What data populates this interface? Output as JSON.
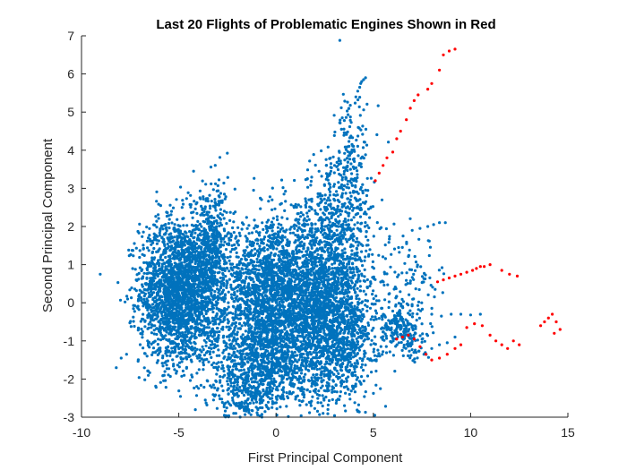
{
  "chart_data": {
    "type": "scatter",
    "title": "Last 20 Flights of Problematic Engines Shown in Red",
    "xlabel": "First Principal Component",
    "ylabel": "Second Principal Component",
    "xlim": [
      -10,
      15
    ],
    "ylim": [
      -3,
      7
    ],
    "xticks": [
      -10,
      -5,
      0,
      5,
      10,
      15
    ],
    "yticks": [
      -3,
      -2,
      -1,
      0,
      1,
      2,
      3,
      4,
      5,
      6,
      7
    ],
    "grid": false,
    "colors": {
      "normal": "#0072BD",
      "problematic": "#FF0000"
    },
    "series": [
      {
        "color_key": "normal",
        "clusters": [
          {
            "cx": -5.0,
            "cy": 0.3,
            "sx": 1.0,
            "sy": 0.95,
            "n": 2200
          },
          {
            "cx": -3.3,
            "cy": 1.3,
            "sx": 0.6,
            "sy": 0.9,
            "n": 500
          },
          {
            "cx": 0.0,
            "cy": 0.4,
            "sx": 1.3,
            "sy": 0.85,
            "n": 1900
          },
          {
            "cx": -0.5,
            "cy": -1.3,
            "sx": 1.5,
            "sy": 0.75,
            "n": 1300
          },
          {
            "cx": 3.0,
            "cy": -0.4,
            "sx": 1.0,
            "sy": 1.1,
            "n": 1700
          },
          {
            "cx": 3.0,
            "cy": 2.0,
            "sx": 1.0,
            "sy": 0.9,
            "n": 500
          },
          {
            "cx": 3.8,
            "cy": 3.8,
            "sx": 0.45,
            "sy": 0.8,
            "n": 150
          },
          {
            "cx": 6.5,
            "cy": -0.8,
            "sx": 0.7,
            "sy": 0.35,
            "n": 220
          },
          {
            "cx": 6.8,
            "cy": 0.3,
            "sx": 0.9,
            "sy": 0.7,
            "n": 120
          },
          {
            "cx": -1.5,
            "cy": -2.3,
            "sx": 0.8,
            "sy": 0.35,
            "n": 200
          }
        ],
        "trails": [
          {
            "x": [
              4.1,
              4.2,
              4.3,
              4.35,
              4.4,
              4.5,
              4.6
            ],
            "y": [
              5.4,
              5.55,
              5.65,
              5.75,
              5.8,
              5.85,
              5.9
            ]
          },
          {
            "x": [
              6.8,
              7.2,
              7.6,
              8.0,
              8.4,
              8.8,
              9.2
            ],
            "y": [
              -1.1,
              -1.3,
              -1.35,
              -1.2,
              -1.1,
              -1.05,
              -0.9
            ]
          },
          {
            "x": [
              7.0,
              7.4,
              7.8,
              8.1,
              8.4,
              8.7
            ],
            "y": [
              1.9,
              1.95,
              2.0,
              2.05,
              2.1,
              2.1
            ]
          },
          {
            "x": [
              8.0,
              8.5,
              9.0,
              9.5,
              10.0,
              10.5
            ],
            "y": [
              -0.3,
              -0.35,
              -0.3,
              -0.3,
              -0.32,
              -0.3
            ]
          }
        ]
      },
      {
        "color_key": "problematic",
        "points": [
          [
            5.1,
            3.2
          ],
          [
            5.3,
            3.4
          ],
          [
            5.5,
            3.6
          ],
          [
            5.7,
            3.8
          ],
          [
            6.0,
            3.95
          ],
          [
            6.2,
            4.3
          ],
          [
            6.4,
            4.5
          ],
          [
            6.7,
            4.8
          ],
          [
            6.9,
            5.1
          ],
          [
            7.1,
            5.3
          ],
          [
            7.3,
            5.45
          ],
          [
            7.8,
            5.6
          ],
          [
            8.0,
            5.75
          ],
          [
            8.4,
            6.1
          ],
          [
            8.6,
            6.5
          ],
          [
            8.9,
            6.6
          ],
          [
            9.2,
            6.65
          ],
          [
            8.3,
            0.55
          ],
          [
            8.6,
            0.6
          ],
          [
            8.9,
            0.65
          ],
          [
            9.2,
            0.7
          ],
          [
            9.5,
            0.75
          ],
          [
            9.8,
            0.8
          ],
          [
            10.1,
            0.85
          ],
          [
            10.3,
            0.9
          ],
          [
            10.5,
            0.95
          ],
          [
            10.7,
            0.95
          ],
          [
            11.0,
            1.0
          ],
          [
            11.6,
            0.85
          ],
          [
            12.0,
            0.75
          ],
          [
            12.4,
            0.7
          ],
          [
            6.2,
            -0.95
          ],
          [
            6.5,
            -0.9
          ],
          [
            6.8,
            -0.85
          ],
          [
            7.1,
            -0.95
          ],
          [
            7.4,
            -1.15
          ],
          [
            7.7,
            -1.35
          ],
          [
            8.0,
            -1.5
          ],
          [
            8.4,
            -1.45
          ],
          [
            8.8,
            -1.35
          ],
          [
            9.2,
            -1.2
          ],
          [
            9.5,
            -1.1
          ],
          [
            9.8,
            -0.65
          ],
          [
            10.2,
            -0.55
          ],
          [
            10.6,
            -0.6
          ],
          [
            11.0,
            -0.85
          ],
          [
            11.3,
            -1.0
          ],
          [
            11.6,
            -1.1
          ],
          [
            11.9,
            -1.2
          ],
          [
            12.2,
            -1.0
          ],
          [
            12.5,
            -1.1
          ],
          [
            13.8,
            -0.5
          ],
          [
            14.0,
            -0.4
          ],
          [
            14.2,
            -0.3
          ],
          [
            14.4,
            -0.5
          ],
          [
            14.6,
            -0.7
          ],
          [
            14.3,
            -0.8
          ],
          [
            13.6,
            -0.6
          ]
        ]
      }
    ]
  }
}
